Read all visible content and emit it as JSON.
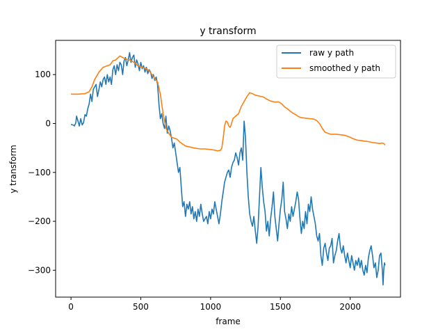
{
  "chart_data": {
    "type": "line",
    "title": "y transform",
    "xlabel": "frame",
    "ylabel": "y transform",
    "xlim": [
      -110,
      2360
    ],
    "ylim": [
      -355,
      170
    ],
    "xticks": [
      0,
      500,
      1000,
      1500,
      2000
    ],
    "yticks": [
      -300,
      -200,
      -100,
      0,
      100
    ],
    "grid": false,
    "legend_position": "top-right",
    "series": [
      {
        "name": "raw y path",
        "color": "#1f77b4",
        "points": [
          [
            0,
            -2
          ],
          [
            15,
            -3
          ],
          [
            25,
            -5
          ],
          [
            35,
            2
          ],
          [
            40,
            15
          ],
          [
            50,
            5
          ],
          [
            60,
            -5
          ],
          [
            70,
            10
          ],
          [
            80,
            -3
          ],
          [
            90,
            2
          ],
          [
            100,
            18
          ],
          [
            110,
            15
          ],
          [
            120,
            30
          ],
          [
            130,
            40
          ],
          [
            140,
            60
          ],
          [
            150,
            45
          ],
          [
            160,
            70
          ],
          [
            170,
            75
          ],
          [
            180,
            80
          ],
          [
            190,
            55
          ],
          [
            200,
            70
          ],
          [
            210,
            85
          ],
          [
            220,
            75
          ],
          [
            230,
            90
          ],
          [
            240,
            95
          ],
          [
            250,
            80
          ],
          [
            260,
            100
          ],
          [
            270,
            85
          ],
          [
            280,
            95
          ],
          [
            290,
            80
          ],
          [
            300,
            110
          ],
          [
            310,
            118
          ],
          [
            320,
            100
          ],
          [
            330,
            120
          ],
          [
            340,
            108
          ],
          [
            350,
            125
          ],
          [
            360,
            120
          ],
          [
            370,
            100
          ],
          [
            380,
            128
          ],
          [
            390,
            135
          ],
          [
            400,
            118
          ],
          [
            410,
            130
          ],
          [
            420,
            145
          ],
          [
            430,
            125
          ],
          [
            440,
            135
          ],
          [
            450,
            140
          ],
          [
            460,
            115
          ],
          [
            470,
            130
          ],
          [
            480,
            122
          ],
          [
            490,
            108
          ],
          [
            500,
            125
          ],
          [
            510,
            112
          ],
          [
            520,
            118
          ],
          [
            530,
            105
          ],
          [
            540,
            115
          ],
          [
            550,
            102
          ],
          [
            560,
            110
          ],
          [
            570,
            105
          ],
          [
            580,
            92
          ],
          [
            590,
            100
          ],
          [
            600,
            88
          ],
          [
            610,
            95
          ],
          [
            620,
            80
          ],
          [
            630,
            40
          ],
          [
            640,
            10
          ],
          [
            650,
            20
          ],
          [
            660,
            0
          ],
          [
            670,
            -10
          ],
          [
            680,
            15
          ],
          [
            690,
            -20
          ],
          [
            700,
            -5
          ],
          [
            710,
            -15
          ],
          [
            720,
            -30
          ],
          [
            730,
            -50
          ],
          [
            740,
            -40
          ],
          [
            750,
            -60
          ],
          [
            760,
            -80
          ],
          [
            770,
            -100
          ],
          [
            780,
            -90
          ],
          [
            790,
            -130
          ],
          [
            800,
            -170
          ],
          [
            810,
            -160
          ],
          [
            820,
            -190
          ],
          [
            830,
            -165
          ],
          [
            840,
            -175
          ],
          [
            850,
            -160
          ],
          [
            860,
            -185
          ],
          [
            870,
            -170
          ],
          [
            880,
            -195
          ],
          [
            890,
            -180
          ],
          [
            900,
            -200
          ],
          [
            910,
            -175
          ],
          [
            920,
            -190
          ],
          [
            930,
            -165
          ],
          [
            940,
            -185
          ],
          [
            950,
            -200
          ],
          [
            960,
            -195
          ],
          [
            970,
            -190
          ],
          [
            980,
            -205
          ],
          [
            990,
            -180
          ],
          [
            1000,
            -195
          ],
          [
            1010,
            -175
          ],
          [
            1020,
            -185
          ],
          [
            1030,
            -160
          ],
          [
            1040,
            -175
          ],
          [
            1050,
            -190
          ],
          [
            1060,
            -205
          ],
          [
            1070,
            -185
          ],
          [
            1080,
            -160
          ],
          [
            1090,
            -140
          ],
          [
            1100,
            -120
          ],
          [
            1110,
            -110
          ],
          [
            1120,
            -100
          ],
          [
            1130,
            -95
          ],
          [
            1140,
            -110
          ],
          [
            1150,
            -90
          ],
          [
            1160,
            -80
          ],
          [
            1170,
            -75
          ],
          [
            1180,
            -60
          ],
          [
            1190,
            -70
          ],
          [
            1200,
            -85
          ],
          [
            1210,
            -60
          ],
          [
            1220,
            -50
          ],
          [
            1230,
            -75
          ],
          [
            1240,
            5
          ],
          [
            1250,
            -30
          ],
          [
            1260,
            -100
          ],
          [
            1270,
            -150
          ],
          [
            1280,
            -185
          ],
          [
            1290,
            -200
          ],
          [
            1300,
            -210
          ],
          [
            1310,
            -190
          ],
          [
            1320,
            -220
          ],
          [
            1330,
            -245
          ],
          [
            1340,
            -210
          ],
          [
            1350,
            -150
          ],
          [
            1360,
            -90
          ],
          [
            1370,
            -130
          ],
          [
            1380,
            -160
          ],
          [
            1390,
            -180
          ],
          [
            1400,
            -220
          ],
          [
            1410,
            -200
          ],
          [
            1420,
            -230
          ],
          [
            1430,
            -195
          ],
          [
            1440,
            -170
          ],
          [
            1450,
            -140
          ],
          [
            1460,
            -190
          ],
          [
            1470,
            -215
          ],
          [
            1480,
            -240
          ],
          [
            1490,
            -205
          ],
          [
            1500,
            -175
          ],
          [
            1510,
            -155
          ],
          [
            1520,
            -120
          ],
          [
            1530,
            -180
          ],
          [
            1540,
            -195
          ],
          [
            1550,
            -215
          ],
          [
            1560,
            -185
          ],
          [
            1570,
            -200
          ],
          [
            1580,
            -170
          ],
          [
            1590,
            -190
          ],
          [
            1600,
            -175
          ],
          [
            1610,
            -160
          ],
          [
            1620,
            -140
          ],
          [
            1630,
            -155
          ],
          [
            1640,
            -195
          ],
          [
            1650,
            -225
          ],
          [
            1660,
            -200
          ],
          [
            1670,
            -215
          ],
          [
            1680,
            -180
          ],
          [
            1690,
            -205
          ],
          [
            1700,
            -165
          ],
          [
            1710,
            -180
          ],
          [
            1720,
            -150
          ],
          [
            1730,
            -175
          ],
          [
            1740,
            -190
          ],
          [
            1750,
            -205
          ],
          [
            1760,
            -230
          ],
          [
            1770,
            -240
          ],
          [
            1780,
            -225
          ],
          [
            1790,
            -270
          ],
          [
            1800,
            -290
          ],
          [
            1810,
            -255
          ],
          [
            1820,
            -245
          ],
          [
            1830,
            -265
          ],
          [
            1840,
            -280
          ],
          [
            1850,
            -255
          ],
          [
            1860,
            -250
          ],
          [
            1870,
            -235
          ],
          [
            1880,
            -285
          ],
          [
            1890,
            -270
          ],
          [
            1900,
            -260
          ],
          [
            1910,
            -240
          ],
          [
            1920,
            -225
          ],
          [
            1930,
            -255
          ],
          [
            1940,
            -265
          ],
          [
            1950,
            -250
          ],
          [
            1960,
            -270
          ],
          [
            1970,
            -285
          ],
          [
            1980,
            -265
          ],
          [
            1990,
            -280
          ],
          [
            2000,
            -295
          ],
          [
            2010,
            -270
          ],
          [
            2020,
            -285
          ],
          [
            2030,
            -300
          ],
          [
            2040,
            -280
          ],
          [
            2050,
            -290
          ],
          [
            2060,
            -275
          ],
          [
            2070,
            -295
          ],
          [
            2080,
            -280
          ],
          [
            2090,
            -300
          ],
          [
            2100,
            -310
          ],
          [
            2110,
            -290
          ],
          [
            2120,
            -305
          ],
          [
            2130,
            -275
          ],
          [
            2140,
            -260
          ],
          [
            2150,
            -250
          ],
          [
            2160,
            -270
          ],
          [
            2170,
            -295
          ],
          [
            2180,
            -285
          ],
          [
            2190,
            -315
          ],
          [
            2200,
            -300
          ],
          [
            2210,
            -270
          ],
          [
            2220,
            -265
          ],
          [
            2230,
            -300
          ],
          [
            2235,
            -330
          ],
          [
            2240,
            -300
          ],
          [
            2245,
            -285
          ],
          [
            2250,
            -290
          ]
        ]
      },
      {
        "name": "smoothed y path",
        "color": "#ff7f0e",
        "points": [
          [
            0,
            60
          ],
          [
            50,
            60
          ],
          [
            100,
            61
          ],
          [
            130,
            65
          ],
          [
            150,
            75
          ],
          [
            170,
            90
          ],
          [
            200,
            105
          ],
          [
            230,
            115
          ],
          [
            260,
            118
          ],
          [
            280,
            120
          ],
          [
            300,
            128
          ],
          [
            320,
            130
          ],
          [
            350,
            138
          ],
          [
            370,
            135
          ],
          [
            390,
            132
          ],
          [
            420,
            130
          ],
          [
            450,
            125
          ],
          [
            480,
            118
          ],
          [
            510,
            115
          ],
          [
            540,
            112
          ],
          [
            560,
            108
          ],
          [
            580,
            100
          ],
          [
            600,
            92
          ],
          [
            620,
            85
          ],
          [
            640,
            60
          ],
          [
            650,
            40
          ],
          [
            660,
            20
          ],
          [
            670,
            5
          ],
          [
            680,
            -10
          ],
          [
            700,
            -20
          ],
          [
            720,
            -28
          ],
          [
            740,
            -30
          ],
          [
            760,
            -32
          ],
          [
            780,
            -38
          ],
          [
            800,
            -42
          ],
          [
            820,
            -46
          ],
          [
            850,
            -48
          ],
          [
            880,
            -50
          ],
          [
            900,
            -51
          ],
          [
            930,
            -52
          ],
          [
            960,
            -52
          ],
          [
            990,
            -53
          ],
          [
            1020,
            -54
          ],
          [
            1050,
            -56
          ],
          [
            1070,
            -55
          ],
          [
            1080,
            -50
          ],
          [
            1090,
            -30
          ],
          [
            1100,
            -5
          ],
          [
            1110,
            5
          ],
          [
            1120,
            3
          ],
          [
            1130,
            -5
          ],
          [
            1140,
            -8
          ],
          [
            1150,
            0
          ],
          [
            1160,
            10
          ],
          [
            1180,
            15
          ],
          [
            1200,
            20
          ],
          [
            1220,
            35
          ],
          [
            1240,
            45
          ],
          [
            1260,
            55
          ],
          [
            1280,
            63
          ],
          [
            1300,
            61
          ],
          [
            1320,
            58
          ],
          [
            1350,
            56
          ],
          [
            1380,
            54
          ],
          [
            1400,
            50
          ],
          [
            1430,
            46
          ],
          [
            1460,
            44
          ],
          [
            1490,
            44
          ],
          [
            1510,
            40
          ],
          [
            1530,
            34
          ],
          [
            1550,
            30
          ],
          [
            1570,
            25
          ],
          [
            1590,
            21
          ],
          [
            1610,
            18
          ],
          [
            1630,
            14
          ],
          [
            1650,
            12
          ],
          [
            1680,
            11
          ],
          [
            1710,
            10
          ],
          [
            1740,
            9
          ],
          [
            1760,
            6
          ],
          [
            1780,
            0
          ],
          [
            1800,
            -10
          ],
          [
            1820,
            -18
          ],
          [
            1840,
            -20
          ],
          [
            1860,
            -22
          ],
          [
            1900,
            -22
          ],
          [
            1930,
            -23
          ],
          [
            1960,
            -24
          ],
          [
            1980,
            -26
          ],
          [
            2000,
            -28
          ],
          [
            2020,
            -31
          ],
          [
            2050,
            -34
          ],
          [
            2080,
            -35
          ],
          [
            2100,
            -36
          ],
          [
            2130,
            -37
          ],
          [
            2160,
            -39
          ],
          [
            2190,
            -40
          ],
          [
            2210,
            -41
          ],
          [
            2230,
            -40
          ],
          [
            2240,
            -41
          ],
          [
            2250,
            -44
          ]
        ]
      }
    ]
  }
}
